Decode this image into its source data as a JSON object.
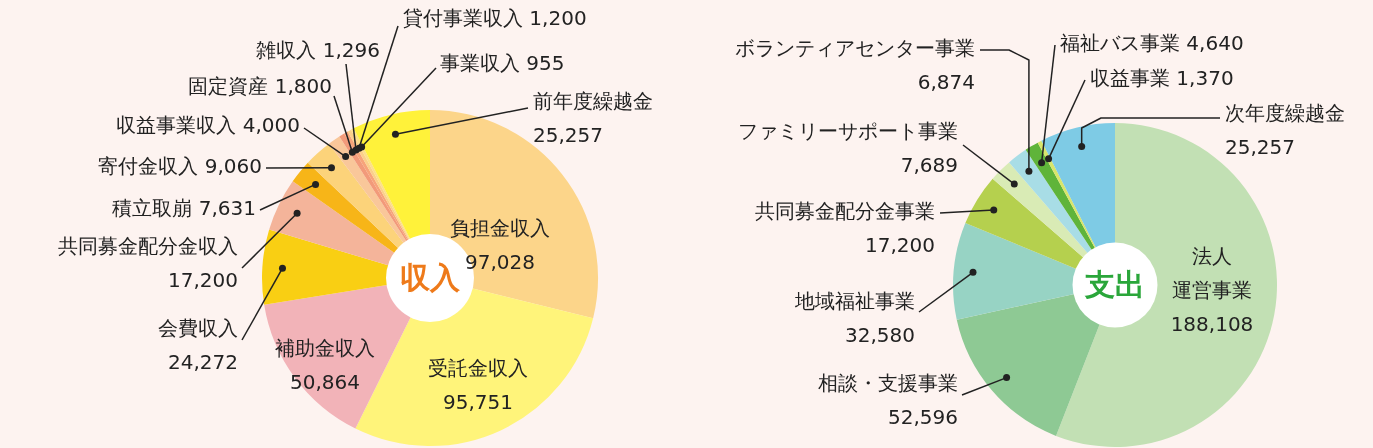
{
  "chart_data": [
    {
      "type": "donut",
      "title": "収入",
      "categories": [
        "負担金収入",
        "受託金収入",
        "補助金収入",
        "会費収入",
        "共同募金配分金収入",
        "積立取崩",
        "寄付金収入",
        "収益事業収入",
        "固定資産",
        "雑収入",
        "貸付事業収入",
        "事業収入",
        "前年度繰越金"
      ],
      "values": [
        97028,
        95751,
        50864,
        24272,
        17200,
        7631,
        9060,
        4000,
        1800,
        1296,
        1200,
        955,
        25257
      ],
      "colors": [
        "#fcd58a",
        "#fff47a",
        "#f2b3b8",
        "#f9cf13",
        "#f4b49a",
        "#f7b518",
        "#fcd37a",
        "#f9c79a",
        "#f29a7a",
        "#f7a47a",
        "#fbd08a",
        "#fde089",
        "#fff23a"
      ],
      "value_labels": [
        "97,028",
        "95,751",
        "50,864",
        "24,272",
        "17,200",
        "7,631",
        "9,060",
        "4,000",
        "1,800",
        "1,296",
        "1,200",
        "955",
        "25,257"
      ],
      "legend": false
    },
    {
      "type": "donut",
      "title": "支出",
      "categories": [
        "法人運営事業",
        "相談・支援事業",
        "地域福祉事業",
        "共同募金配分金事業",
        "ファミリーサポート事業",
        "ボランティアセンター事業",
        "福祉バス事業",
        "収益事業",
        "次年度繰越金"
      ],
      "values": [
        188108,
        52596,
        32580,
        17200,
        7689,
        6874,
        4640,
        1370,
        25257
      ],
      "colors": [
        "#c2e0b4",
        "#8ec994",
        "#97d3c4",
        "#b5d04e",
        "#d9ebb5",
        "#a8dde6",
        "#5fb43a",
        "#d8e66b",
        "#7ecbe5"
      ],
      "value_labels": [
        "188,108",
        "52,596",
        "32,580",
        "17,200",
        "7,689",
        "6,874",
        "4,640",
        "1,370",
        "25,257"
      ],
      "legend": false
    }
  ]
}
